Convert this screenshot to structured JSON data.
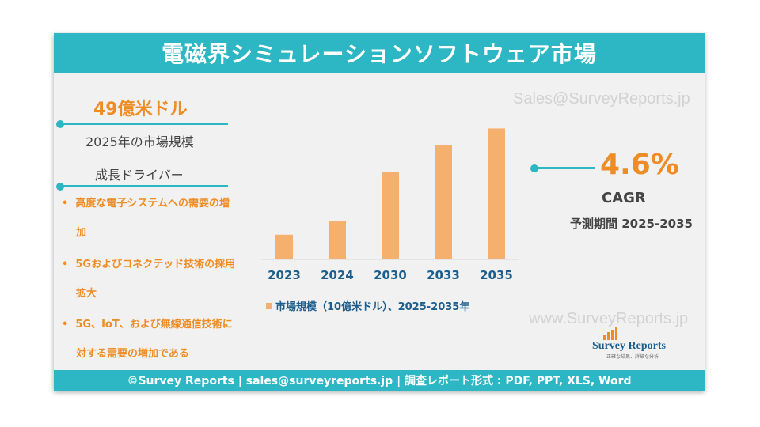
{
  "header": {
    "title": "電磁界シミュレーションソフトウェア市場"
  },
  "watermark": {
    "top": "Sales@SurveyReports.jp",
    "bottom": "www.SurveyReports.jp"
  },
  "market": {
    "value": "49億米ドル",
    "label": "2025年の市場規模"
  },
  "drivers": {
    "title": "成長ドライバー",
    "items": [
      {
        "line1": "高度な電子システムへの需要の増",
        "line2": "加"
      },
      {
        "line1": "5Gおよびコネクテッド技術の採用",
        "line2": "拡大"
      },
      {
        "line1": "5G、IoT、および無線通信技術に",
        "line2": "対する需要の増加である"
      }
    ]
  },
  "cagr": {
    "value": "4.6%",
    "label": "CAGR",
    "period": "予測期間 2025-2035"
  },
  "logo": {
    "name": "Survey Reports",
    "tagline": "正確な結果、詳細な分析"
  },
  "footer": {
    "text": "©Survey Reports | sales@surveyreports.jp | 調査レポート形式 : PDF, PPT, XLS, Word"
  },
  "colors": {
    "accent": "#2db6c3",
    "bar": "#f5b06e",
    "highlight": "#ee8d26"
  },
  "chart_data": {
    "type": "bar",
    "categories": [
      "2023",
      "2024",
      "2030",
      "2033",
      "2035"
    ],
    "values": [
      1.3,
      2.0,
      4.6,
      6.0,
      6.9
    ],
    "legend": "市場規模（10億米ドル）、2025-2035年",
    "ylim": [
      0,
      7.0
    ],
    "grid": false
  }
}
